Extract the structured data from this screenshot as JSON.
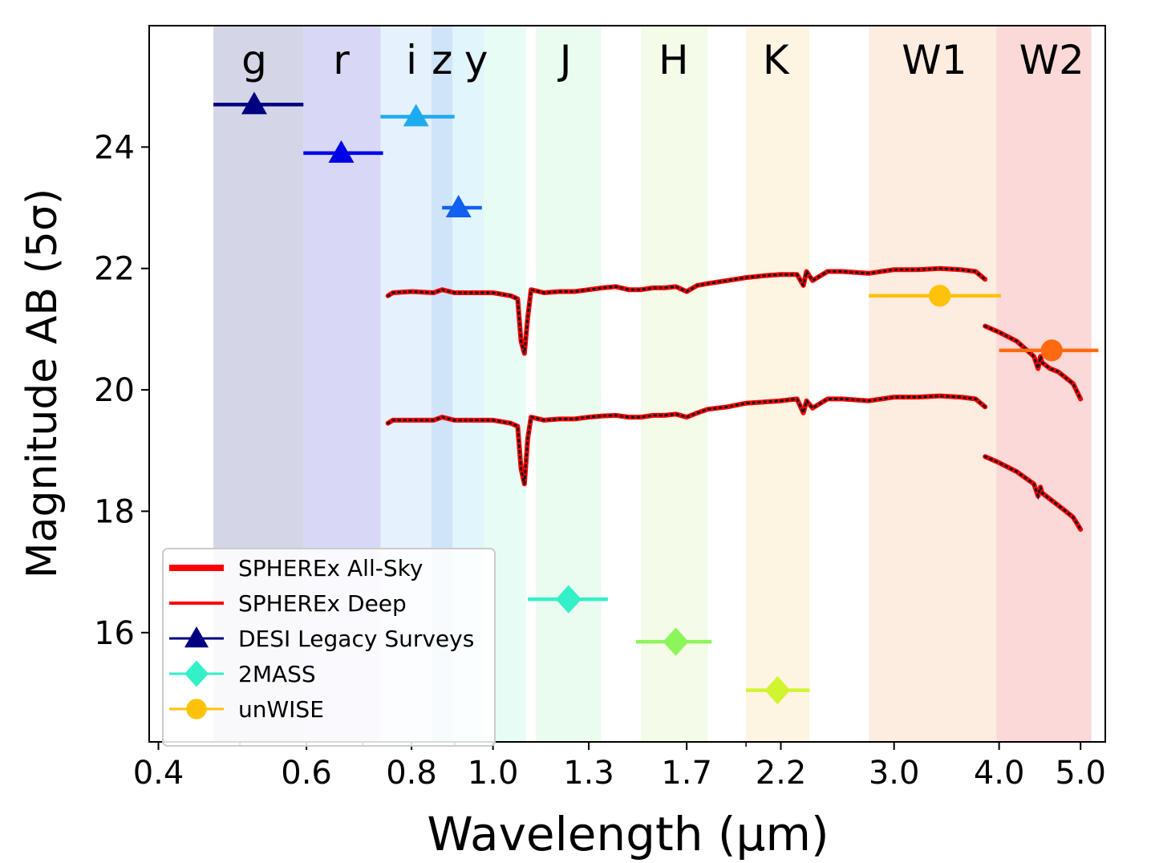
{
  "chart_data": {
    "type": "scatter",
    "title": "",
    "xlabel": "Wavelength (μm)",
    "ylabel": "Magnitude AB  (5σ)",
    "xscale": "log",
    "xlim": [
      0.39,
      5.35
    ],
    "ylim": [
      14.2,
      26.0
    ],
    "xticks": [
      {
        "value": 0.4,
        "label": "0.4"
      },
      {
        "value": 0.6,
        "label": "0.6"
      },
      {
        "value": 0.8,
        "label": "0.8"
      },
      {
        "value": 1.0,
        "label": "1.0"
      },
      {
        "value": 1.3,
        "label": "1.3"
      },
      {
        "value": 1.7,
        "label": "1.7"
      },
      {
        "value": 2.2,
        "label": "2.2"
      },
      {
        "value": 3.0,
        "label": "3.0"
      },
      {
        "value": 4.0,
        "label": "4.0"
      },
      {
        "value": 5.0,
        "label": "5.0"
      }
    ],
    "xminor_ticks": [
      0.5,
      0.7,
      0.9,
      2.0
    ],
    "yticks": [
      {
        "value": 16,
        "label": "16"
      },
      {
        "value": 18,
        "label": "18"
      },
      {
        "value": 20,
        "label": "20"
      },
      {
        "value": 22,
        "label": "22"
      },
      {
        "value": 24,
        "label": "24"
      }
    ],
    "bands": [
      {
        "name": "g",
        "range": [
          0.465,
          0.595
        ],
        "color": "#b3b3d6"
      },
      {
        "name": "r",
        "range": [
          0.595,
          0.735
        ],
        "color": "#b8b8ee"
      },
      {
        "name": "i",
        "range": [
          0.735,
          0.845
        ],
        "color": "#cfe5fc"
      },
      {
        "name": "z",
        "range": [
          0.845,
          0.895
        ],
        "color": "#a9cdf4"
      },
      {
        "name": "y",
        "range": [
          0.895,
          0.975
        ],
        "color": "#c7edf9"
      },
      {
        "name": "",
        "range": [
          0.975,
          1.095
        ],
        "color": "#d5f9ef"
      },
      {
        "name": "J",
        "range": [
          1.125,
          1.345
        ],
        "color": "#d8f7e3"
      },
      {
        "name": "H",
        "range": [
          1.5,
          1.8
        ],
        "color": "#ebf8d6"
      },
      {
        "name": "K",
        "range": [
          2.0,
          2.38
        ],
        "color": "#fcebc8"
      },
      {
        "name": "W1",
        "range": [
          2.8,
          3.97
        ],
        "color": "#fcdcc7"
      },
      {
        "name": "W2",
        "range": [
          3.97,
          5.15
        ],
        "color": "#f6b9b8"
      }
    ],
    "band_labels": [
      {
        "text": "g",
        "x": 0.52
      },
      {
        "text": "r",
        "x": 0.66
      },
      {
        "text": "i",
        "x": 0.8
      },
      {
        "text": "z",
        "x": 0.87
      },
      {
        "text": "y",
        "x": 0.955
      },
      {
        "text": "J",
        "x": 1.22
      },
      {
        "text": "H",
        "x": 1.64
      },
      {
        "text": "K",
        "x": 2.17
      },
      {
        "text": "W1",
        "x": 3.35
      },
      {
        "text": "W2",
        "x": 4.62
      }
    ],
    "series": [
      {
        "name": "SPHEREx All-Sky",
        "type": "line",
        "color": "#ff0000",
        "segments": [
          {
            "x": [
              0.75,
              0.76,
              0.8,
              0.85,
              0.87,
              0.9,
              0.95,
              1.0,
              1.05,
              1.07,
              1.08,
              1.09,
              1.1,
              1.11,
              1.15,
              1.2,
              1.25,
              1.3,
              1.35,
              1.4,
              1.45,
              1.5,
              1.55,
              1.6,
              1.65,
              1.7,
              1.75,
              1.8,
              1.9,
              2.0,
              2.1,
              2.2,
              2.3,
              2.34,
              2.36,
              2.4,
              2.5,
              2.6,
              2.8,
              3.0,
              3.2,
              3.4,
              3.6,
              3.75,
              3.85
            ],
            "y": [
              21.55,
              21.6,
              21.62,
              21.6,
              21.65,
              21.6,
              21.6,
              21.6,
              21.55,
              21.5,
              20.8,
              20.6,
              21.2,
              21.65,
              21.6,
              21.62,
              21.62,
              21.65,
              21.68,
              21.7,
              21.65,
              21.65,
              21.68,
              21.68,
              21.7,
              21.62,
              21.72,
              21.75,
              21.8,
              21.85,
              21.88,
              21.9,
              21.9,
              21.72,
              21.95,
              21.8,
              21.95,
              21.95,
              21.92,
              21.98,
              21.98,
              22.0,
              21.98,
              21.95,
              21.82
            ]
          },
          {
            "x": [
              3.85,
              4.0,
              4.2,
              4.4,
              4.45,
              4.48,
              4.5,
              4.6,
              4.7,
              4.8,
              4.9,
              5.0
            ],
            "y": [
              21.05,
              20.95,
              20.8,
              20.55,
              20.35,
              20.55,
              20.45,
              20.35,
              20.3,
              20.2,
              20.1,
              19.85
            ]
          }
        ]
      },
      {
        "name": "SPHEREx Deep",
        "type": "line",
        "color": "#ff0000",
        "segments": [
          {
            "x": [
              0.75,
              0.76,
              0.8,
              0.85,
              0.87,
              0.9,
              0.95,
              1.0,
              1.05,
              1.07,
              1.08,
              1.09,
              1.1,
              1.11,
              1.15,
              1.2,
              1.25,
              1.3,
              1.35,
              1.4,
              1.45,
              1.5,
              1.55,
              1.6,
              1.65,
              1.7,
              1.75,
              1.8,
              1.9,
              2.0,
              2.1,
              2.2,
              2.3,
              2.34,
              2.36,
              2.4,
              2.5,
              2.6,
              2.8,
              3.0,
              3.2,
              3.4,
              3.6,
              3.75,
              3.85
            ],
            "y": [
              19.45,
              19.5,
              19.5,
              19.5,
              19.55,
              19.5,
              19.5,
              19.5,
              19.45,
              19.4,
              18.7,
              18.45,
              19.2,
              19.55,
              19.5,
              19.52,
              19.52,
              19.55,
              19.57,
              19.58,
              19.55,
              19.55,
              19.58,
              19.58,
              19.6,
              19.55,
              19.62,
              19.68,
              19.72,
              19.78,
              19.8,
              19.82,
              19.85,
              19.62,
              19.82,
              19.7,
              19.85,
              19.85,
              19.82,
              19.88,
              19.88,
              19.9,
              19.88,
              19.85,
              19.72
            ]
          },
          {
            "x": [
              3.85,
              4.0,
              4.2,
              4.4,
              4.45,
              4.48,
              4.5,
              4.6,
              4.7,
              4.8,
              4.9,
              5.0
            ],
            "y": [
              18.9,
              18.8,
              18.65,
              18.45,
              18.25,
              18.4,
              18.3,
              18.2,
              18.1,
              18.0,
              17.9,
              17.7
            ]
          }
        ]
      },
      {
        "name": "DESI Legacy Surveys",
        "type": "errorbar",
        "marker": "triangle",
        "points": [
          {
            "x": 0.52,
            "y": 24.7,
            "xerr": [
              0.465,
              0.595
            ],
            "color": "#000080"
          },
          {
            "x": 0.66,
            "y": 23.9,
            "xerr": [
              0.595,
              0.74
            ],
            "color": "#0000e6"
          },
          {
            "x": 0.81,
            "y": 24.5,
            "xerr": [
              0.735,
              0.9
            ],
            "color": "#1eaaee"
          },
          {
            "x": 0.91,
            "y": 23.0,
            "xerr": [
              0.87,
              0.97
            ],
            "color": "#1260f0"
          }
        ]
      },
      {
        "name": "2MASS",
        "type": "errorbar",
        "marker": "diamond",
        "points": [
          {
            "x": 1.23,
            "y": 16.55,
            "xerr": [
              1.1,
              1.37
            ],
            "color": "#33f0c8"
          },
          {
            "x": 1.65,
            "y": 15.85,
            "xerr": [
              1.48,
              1.82
            ],
            "color": "#8cf55a"
          },
          {
            "x": 2.18,
            "y": 15.05,
            "xerr": [
              2.0,
              2.38
            ],
            "color": "#d0f530"
          }
        ]
      },
      {
        "name": "unWISE",
        "type": "errorbar",
        "marker": "circle",
        "points": [
          {
            "x": 3.4,
            "y": 21.55,
            "xerr": [
              2.8,
              4.02
            ],
            "color": "#ffc20a"
          },
          {
            "x": 4.62,
            "y": 20.65,
            "xerr": [
              4.0,
              5.25
            ],
            "color": "#ff6a10"
          }
        ]
      }
    ],
    "legend": {
      "location": "lower-left",
      "entries": [
        {
          "label": "SPHEREx All-Sky",
          "style": "thick-line",
          "color": "#ff0000"
        },
        {
          "label": "SPHEREx Deep",
          "style": "line",
          "color": "#ff0000"
        },
        {
          "label": "DESI Legacy Surveys",
          "style": "triangle",
          "color": "#000080"
        },
        {
          "label": "2MASS",
          "style": "diamond",
          "color": "#33f0c8"
        },
        {
          "label": "unWISE",
          "style": "circle",
          "color": "#ffc20a"
        }
      ]
    }
  }
}
